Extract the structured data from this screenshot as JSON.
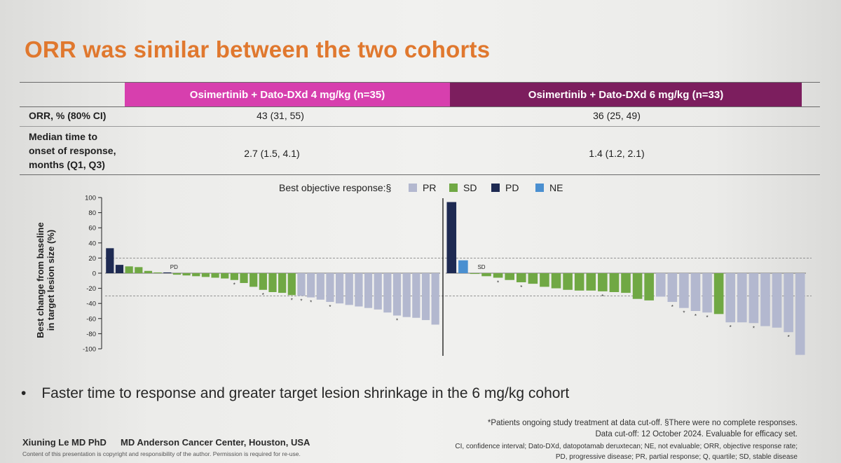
{
  "slide": {
    "title": "ORR was similar between the two cohorts",
    "bullet": "Faster time to response and greater target lesion shrinkage in the 6 mg/kg cohort",
    "bullet_marker": "•"
  },
  "table": {
    "cohorts": [
      {
        "label": "Osimertinib + Dato-DXd 4 mg/kg (n=35)",
        "color": "#d73fae"
      },
      {
        "label": "Osimertinib + Dato-DXd 6 mg/kg (n=33)",
        "color": "#7c1e5e"
      }
    ],
    "rows": [
      {
        "label_lines": [
          "ORR, % (80% CI)"
        ],
        "values": [
          "43 (31, 55)",
          "36 (25, 49)"
        ]
      },
      {
        "label_lines": [
          "Median time to",
          "onset of response,",
          "months (Q1, Q3)"
        ],
        "values": [
          "2.7 (1.5, 4.1)",
          "1.4 (1.2, 2.1)"
        ]
      }
    ]
  },
  "legend": {
    "title": "Best objective response:§",
    "items": [
      {
        "label": "PR",
        "color": "#b3b8cf"
      },
      {
        "label": "SD",
        "color": "#70a844"
      },
      {
        "label": "PD",
        "color": "#1e2a52"
      },
      {
        "label": "NE",
        "color": "#4a8fd0"
      }
    ]
  },
  "chart_data": {
    "type": "bar",
    "ylabel": "Best change from baseline in target lesion size (%)",
    "ylabel_lines": [
      "Best change from baseline",
      "in target lesion size (%)"
    ],
    "ylim": [
      -100,
      100
    ],
    "yticks": [
      100,
      80,
      60,
      40,
      20,
      0,
      -20,
      -40,
      -60,
      -80,
      -100
    ],
    "reference_lines": [
      20,
      -30
    ],
    "colors": {
      "PR": "#b3b8cf",
      "SD": "#70a844",
      "PD": "#1e2a52",
      "NE": "#4a8fd0"
    },
    "panels": [
      {
        "cohort": "Osimertinib + Dato-DXd 4 mg/kg (n=35)",
        "bar_label": {
          "text": "PD",
          "index": 6
        },
        "bars": [
          {
            "value": 33,
            "response": "PD"
          },
          {
            "value": 11,
            "response": "PD"
          },
          {
            "value": 9,
            "response": "SD"
          },
          {
            "value": 8,
            "response": "SD"
          },
          {
            "value": 3,
            "response": "SD"
          },
          {
            "value": 1,
            "response": "SD"
          },
          {
            "value": 1,
            "response": "PD"
          },
          {
            "value": -2,
            "response": "SD"
          },
          {
            "value": -3,
            "response": "SD"
          },
          {
            "value": -4,
            "response": "SD"
          },
          {
            "value": -5,
            "response": "SD"
          },
          {
            "value": -6,
            "response": "SD"
          },
          {
            "value": -7,
            "response": "SD"
          },
          {
            "value": -9,
            "response": "SD",
            "ongoing": true
          },
          {
            "value": -13,
            "response": "SD"
          },
          {
            "value": -18,
            "response": "SD"
          },
          {
            "value": -22,
            "response": "SD",
            "ongoing": true
          },
          {
            "value": -25,
            "response": "SD"
          },
          {
            "value": -26,
            "response": "SD"
          },
          {
            "value": -29,
            "response": "SD",
            "ongoing": true
          },
          {
            "value": -30,
            "response": "PR",
            "ongoing": true
          },
          {
            "value": -32,
            "response": "PR",
            "ongoing": true
          },
          {
            "value": -35,
            "response": "PR"
          },
          {
            "value": -38,
            "response": "PR",
            "ongoing": true
          },
          {
            "value": -40,
            "response": "PR"
          },
          {
            "value": -42,
            "response": "PR"
          },
          {
            "value": -44,
            "response": "PR"
          },
          {
            "value": -46,
            "response": "PR"
          },
          {
            "value": -48,
            "response": "PR"
          },
          {
            "value": -52,
            "response": "PR"
          },
          {
            "value": -56,
            "response": "PR",
            "ongoing": true
          },
          {
            "value": -58,
            "response": "PR"
          },
          {
            "value": -59,
            "response": "PR"
          },
          {
            "value": -62,
            "response": "PR"
          },
          {
            "value": -68,
            "response": "PR"
          }
        ]
      },
      {
        "cohort": "Osimertinib + Dato-DXd 6 mg/kg (n=33)",
        "bar_label": {
          "text": "SD",
          "index": 2
        },
        "bars": [
          {
            "value": 94,
            "response": "PD"
          },
          {
            "value": 17,
            "response": "NE"
          },
          {
            "value": -1,
            "response": "SD"
          },
          {
            "value": -4,
            "response": "SD"
          },
          {
            "value": -6,
            "response": "SD",
            "ongoing": true
          },
          {
            "value": -9,
            "response": "SD"
          },
          {
            "value": -12,
            "response": "SD",
            "ongoing": true
          },
          {
            "value": -14,
            "response": "SD"
          },
          {
            "value": -18,
            "response": "SD"
          },
          {
            "value": -20,
            "response": "SD"
          },
          {
            "value": -22,
            "response": "SD"
          },
          {
            "value": -23,
            "response": "SD"
          },
          {
            "value": -23,
            "response": "SD"
          },
          {
            "value": -24,
            "response": "SD",
            "ongoing": true
          },
          {
            "value": -25,
            "response": "SD"
          },
          {
            "value": -26,
            "response": "SD"
          },
          {
            "value": -34,
            "response": "SD"
          },
          {
            "value": -36,
            "response": "SD"
          },
          {
            "value": -31,
            "response": "PR"
          },
          {
            "value": -38,
            "response": "PR",
            "ongoing": true
          },
          {
            "value": -46,
            "response": "PR",
            "ongoing": true
          },
          {
            "value": -50,
            "response": "PR",
            "ongoing": true
          },
          {
            "value": -52,
            "response": "PR",
            "ongoing": true
          },
          {
            "value": -54,
            "response": "SD"
          },
          {
            "value": -65,
            "response": "PR",
            "ongoing": true
          },
          {
            "value": -65,
            "response": "PR"
          },
          {
            "value": -66,
            "response": "PR",
            "ongoing": true
          },
          {
            "value": -70,
            "response": "PR"
          },
          {
            "value": -72,
            "response": "PR"
          },
          {
            "value": -78,
            "response": "PR",
            "ongoing": true
          },
          {
            "value": -108,
            "response": "PR"
          }
        ]
      }
    ]
  },
  "footnotes": {
    "ongoing": "*Patients ongoing study treatment at data cut-off. §There were no complete responses.",
    "cutoff": "Data cut-off: 12 October 2024. Evaluable for efficacy set.",
    "abbrev_1": "CI, confidence interval; Dato-DXd, datopotamab deruxtecan; NE, not evaluable; ORR, objective response rate;",
    "abbrev_2": "PD, progressive disease; PR, partial response; Q, quartile; SD, stable disease"
  },
  "presenter": {
    "name": "Xiuning Le MD PhD",
    "institution": "MD Anderson Cancer Center, Houston, USA",
    "copyright": "Content of this presentation is copyright and responsibility of the author. Permission is required for re-use."
  }
}
